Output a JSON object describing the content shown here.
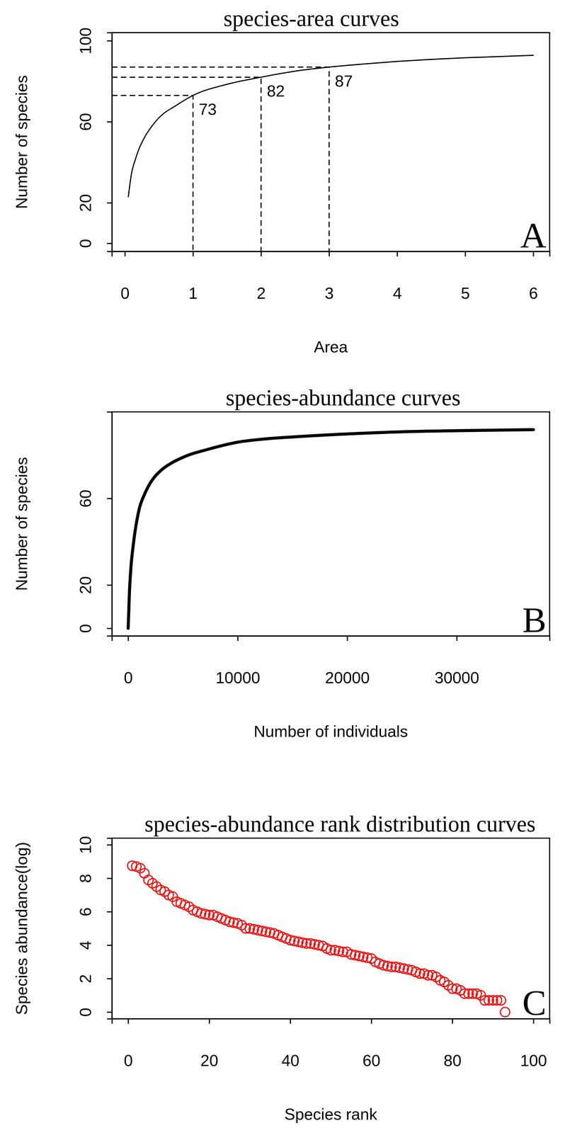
{
  "chart_data": [
    {
      "type": "line",
      "title": "species-area curves",
      "xlabel": "Area",
      "ylabel": "Number of species",
      "panel_label": "A",
      "x": [
        0.05,
        0.1,
        0.15,
        0.2,
        0.3,
        0.4,
        0.5,
        0.75,
        1,
        1.5,
        2,
        2.5,
        3,
        3.5,
        4,
        4.5,
        5,
        5.5,
        6
      ],
      "values": [
        23,
        35,
        41,
        46,
        53,
        58,
        62,
        68,
        73,
        78.5,
        82,
        85,
        87,
        88.5,
        89.8,
        90.8,
        91.6,
        92.2,
        92.8
      ],
      "color": "#000000",
      "line_style": "solid",
      "xlim": [
        -0.19,
        6.24
      ],
      "ylim": [
        -4,
        104
      ],
      "xticks": [
        0,
        1,
        2,
        3,
        4,
        5,
        6
      ],
      "yticks": [
        0,
        20,
        60,
        100
      ],
      "annotations": [
        {
          "x": 1,
          "y": 73,
          "text": "73"
        },
        {
          "x": 2,
          "y": 82,
          "text": "82"
        },
        {
          "x": 3,
          "y": 87,
          "text": "87"
        }
      ]
    },
    {
      "type": "line",
      "title": "species-abundance curves",
      "xlabel": "Number of individuals",
      "ylabel": "Number of species",
      "panel_label": "B",
      "x": [
        0,
        100,
        250,
        500,
        1000,
        1500,
        2000,
        3000,
        4000,
        5000,
        7500,
        10000,
        12500,
        15000,
        20000,
        25000,
        30000,
        37000
      ],
      "values": [
        0,
        15,
        28,
        40,
        55,
        62,
        67,
        73,
        76.5,
        79,
        83,
        86,
        87.5,
        88.4,
        89.8,
        90.8,
        91.3,
        91.8
      ],
      "color": "#000000",
      "line_style": "solid",
      "xlim": [
        -1480,
        38480
      ],
      "ylim": [
        -3.5,
        100
      ],
      "xticks": [
        0,
        10000,
        20000,
        30000
      ],
      "yticks": [
        0,
        20,
        60
      ]
    },
    {
      "type": "scatter",
      "title": "species-abundance rank distribution curves",
      "xlabel": "Species rank",
      "ylabel": "Species abundance(log)",
      "panel_label": "C",
      "x": [
        1,
        2,
        3,
        4,
        5,
        6,
        7,
        8,
        9,
        10,
        11,
        12,
        13,
        14,
        15,
        16,
        17,
        18,
        19,
        20,
        21,
        22,
        23,
        24,
        25,
        26,
        27,
        28,
        29,
        30,
        31,
        32,
        33,
        34,
        35,
        36,
        37,
        38,
        39,
        40,
        41,
        42,
        43,
        44,
        45,
        46,
        47,
        48,
        49,
        50,
        51,
        52,
        53,
        54,
        55,
        56,
        57,
        58,
        59,
        60,
        61,
        62,
        63,
        64,
        65,
        66,
        67,
        68,
        69,
        70,
        71,
        72,
        73,
        74,
        75,
        76,
        77,
        78,
        79,
        80,
        81,
        82,
        83,
        84,
        85,
        86,
        87,
        88,
        89,
        90,
        91,
        92,
        93
      ],
      "values": [
        8.75,
        8.7,
        8.6,
        8.3,
        7.9,
        7.7,
        7.5,
        7.3,
        7.2,
        7.0,
        6.9,
        6.6,
        6.5,
        6.4,
        6.3,
        6.1,
        6.0,
        5.9,
        5.85,
        5.8,
        5.8,
        5.7,
        5.6,
        5.5,
        5.4,
        5.35,
        5.3,
        5.2,
        5.0,
        5.0,
        4.95,
        4.9,
        4.85,
        4.8,
        4.75,
        4.7,
        4.6,
        4.5,
        4.4,
        4.3,
        4.25,
        4.2,
        4.15,
        4.1,
        4.1,
        4.05,
        4.0,
        3.95,
        3.8,
        3.7,
        3.7,
        3.65,
        3.6,
        3.6,
        3.45,
        3.4,
        3.35,
        3.3,
        3.25,
        3.2,
        3.0,
        2.9,
        2.8,
        2.75,
        2.7,
        2.7,
        2.65,
        2.6,
        2.55,
        2.5,
        2.4,
        2.3,
        2.3,
        2.2,
        2.2,
        2.1,
        1.9,
        1.8,
        1.6,
        1.4,
        1.4,
        1.3,
        1.1,
        1.1,
        1.1,
        1.1,
        1.0,
        0.7,
        0.7,
        0.7,
        0.7,
        0.7,
        0.0
      ],
      "color": "#ff0000",
      "marker": "circle",
      "xlim": [
        -4,
        104
      ],
      "ylim": [
        -0.4,
        10.4
      ],
      "xticks": [
        0,
        20,
        40,
        60,
        80,
        100
      ],
      "yticks": [
        0,
        2,
        4,
        6,
        8,
        10
      ]
    }
  ]
}
